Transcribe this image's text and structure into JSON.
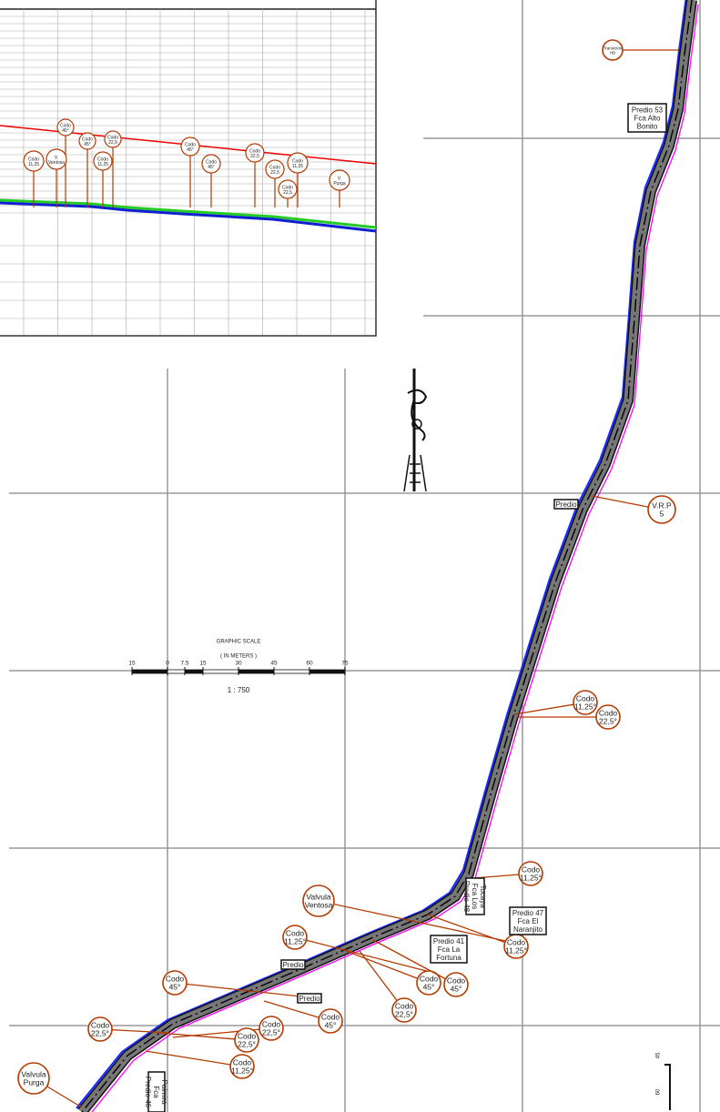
{
  "callouts": [
    {
      "lines": [
        "Transición",
        "HD"
      ]
    },
    {
      "lines": [
        "V.R.P",
        "5"
      ]
    },
    {
      "lines": [
        "Codo",
        "11,25°"
      ]
    },
    {
      "lines": [
        "Codo",
        "22,5°"
      ]
    },
    {
      "lines": [
        "Codo",
        "11,25°"
      ]
    },
    {
      "lines": [
        "Valvula",
        "Ventosa"
      ]
    },
    {
      "lines": [
        "Codo",
        "11,25°"
      ]
    },
    {
      "lines": [
        "Codo",
        "11,25°"
      ]
    },
    {
      "lines": [
        "Codo",
        "45°"
      ]
    },
    {
      "lines": [
        "Codo",
        "45°"
      ]
    },
    {
      "lines": [
        "Codo",
        "22,5°"
      ]
    },
    {
      "lines": [
        "Codo",
        "45°"
      ]
    },
    {
      "lines": [
        "Codo",
        "45°"
      ]
    },
    {
      "lines": [
        "Codo",
        "22,5°"
      ]
    },
    {
      "lines": [
        "Codo",
        "22,5°"
      ]
    },
    {
      "lines": [
        "Codo",
        "22,5°"
      ]
    },
    {
      "lines": [
        "Codo",
        "11,25°"
      ]
    },
    {
      "lines": [
        "Valvula",
        "Purga"
      ]
    }
  ],
  "parcels": [
    {
      "lines": [
        "Predio 53",
        "Fca Alto",
        "Bonito"
      ]
    },
    {
      "lines": [
        "Predio"
      ]
    },
    {
      "lines": [
        "Predio 47",
        "Fca El",
        "Naranjito"
      ]
    },
    {
      "lines": [
        "Predio 41",
        "Fca La",
        "Fortuna"
      ]
    },
    {
      "lines": [
        "Predio"
      ]
    },
    {
      "lines": [
        "Predio"
      ]
    },
    {
      "lines": [
        "Tocaya",
        "Fca Los",
        "Predio 48"
      ]
    },
    {
      "lines": [
        "Palmira",
        "Fca",
        "Predio 46"
      ]
    }
  ],
  "scale": {
    "title": "GRAPHIC SCALE",
    "units": "( IN METERS )",
    "ticks": [
      "15",
      "0",
      "7.5",
      "15",
      "30",
      "45",
      "60",
      "75"
    ],
    "ratio": "1 :  750"
  },
  "profile": {
    "callouts": [
      {
        "lines": [
          "Codo",
          "45°"
        ]
      },
      {
        "lines": [
          "Codo",
          "45°"
        ]
      },
      {
        "lines": [
          "Codo",
          "22,5"
        ]
      },
      {
        "lines": [
          "Codo",
          "11,25"
        ]
      },
      {
        "lines": [
          "V.",
          "Ventosa"
        ]
      },
      {
        "lines": [
          "Codo",
          "11,25"
        ]
      },
      {
        "lines": [
          "Codo",
          "45°"
        ]
      },
      {
        "lines": [
          "Codo",
          "45°"
        ]
      },
      {
        "lines": [
          "Codo",
          "22,5"
        ]
      },
      {
        "lines": [
          "Codo",
          "22,5"
        ]
      },
      {
        "lines": [
          "Codo",
          "11,25"
        ]
      },
      {
        "lines": [
          "Codo",
          "22,5"
        ]
      },
      {
        "lines": [
          "V.",
          "Purga"
        ]
      }
    ]
  },
  "sheet_marks": [
    "45",
    "60"
  ]
}
